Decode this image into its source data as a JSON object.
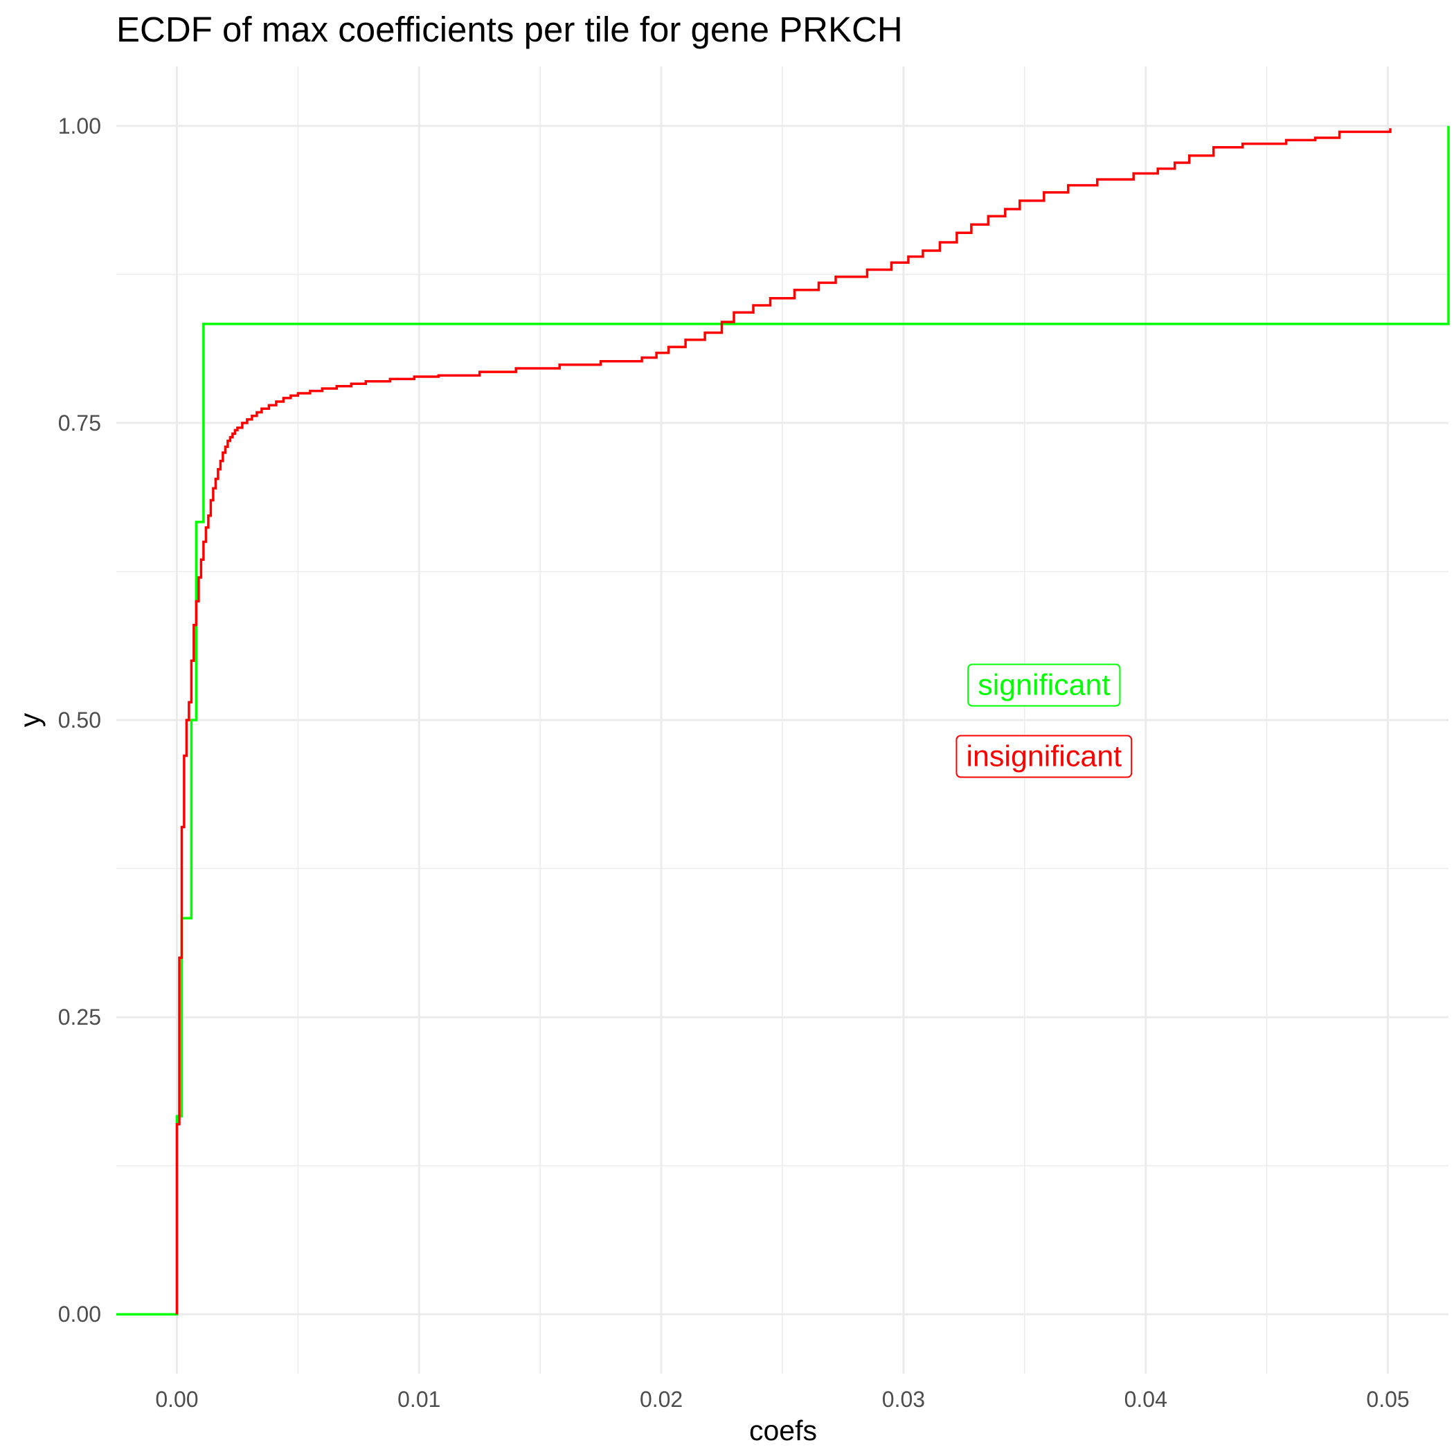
{
  "chart_data": {
    "type": "line",
    "step": true,
    "title": "ECDF of max coefficients per tile for gene PRKCH",
    "xlabel": "coefs",
    "ylabel": "y",
    "xlim": [
      -0.0025,
      0.0525
    ],
    "ylim": [
      -0.05,
      1.05
    ],
    "x_ticks": [
      0.0,
      0.01,
      0.02,
      0.03,
      0.04,
      0.05
    ],
    "x_tick_labels": [
      "0.00",
      "0.01",
      "0.02",
      "0.03",
      "0.04",
      "0.05"
    ],
    "y_ticks": [
      0.0,
      0.25,
      0.5,
      0.75,
      1.0
    ],
    "y_tick_labels": [
      "0.00",
      "0.25",
      "0.50",
      "0.75",
      "1.00"
    ],
    "x_minor_ticks": [
      0.005,
      0.015,
      0.025,
      0.035,
      0.045
    ],
    "y_minor_ticks": [
      0.125,
      0.375,
      0.625,
      0.875
    ],
    "grid": true,
    "series": [
      {
        "name": "significant",
        "color": "#00ff00",
        "x": [
          -0.0025,
          0.0,
          0.0002,
          0.0006,
          0.0008,
          0.0011,
          0.0525
        ],
        "y": [
          0.0,
          0.1667,
          0.3333,
          0.5,
          0.6667,
          0.8333,
          1.0
        ]
      },
      {
        "name": "insignificant",
        "color": "#ff0000",
        "x": [
          0.0,
          0.0001,
          0.0002,
          0.0003,
          0.0004,
          0.0005,
          0.0006,
          0.0007,
          0.0008,
          0.0009,
          0.001,
          0.0011,
          0.0012,
          0.0013,
          0.0014,
          0.0015,
          0.0016,
          0.0017,
          0.0018,
          0.0019,
          0.002,
          0.0021,
          0.0022,
          0.0023,
          0.0024,
          0.0025,
          0.0027,
          0.0029,
          0.0031,
          0.0033,
          0.0035,
          0.0038,
          0.0041,
          0.0044,
          0.0047,
          0.005,
          0.0055,
          0.006,
          0.0066,
          0.0072,
          0.0078,
          0.0088,
          0.0098,
          0.0108,
          0.0125,
          0.014,
          0.0158,
          0.0175,
          0.0192,
          0.0198,
          0.0203,
          0.021,
          0.0218,
          0.0225,
          0.023,
          0.0238,
          0.0245,
          0.0255,
          0.0265,
          0.0272,
          0.0285,
          0.0295,
          0.0302,
          0.0308,
          0.0315,
          0.0322,
          0.0328,
          0.0335,
          0.0342,
          0.0348,
          0.0358,
          0.0368,
          0.038,
          0.0395,
          0.0405,
          0.0412,
          0.0418,
          0.0428,
          0.044,
          0.0458,
          0.047,
          0.048,
          0.0501
        ],
        "y": [
          0.16,
          0.3,
          0.41,
          0.47,
          0.5,
          0.515,
          0.55,
          0.58,
          0.6,
          0.62,
          0.635,
          0.65,
          0.662,
          0.672,
          0.685,
          0.695,
          0.703,
          0.711,
          0.718,
          0.725,
          0.73,
          0.735,
          0.738,
          0.741,
          0.744,
          0.746,
          0.75,
          0.753,
          0.756,
          0.759,
          0.762,
          0.765,
          0.768,
          0.771,
          0.773,
          0.775,
          0.777,
          0.779,
          0.781,
          0.783,
          0.785,
          0.787,
          0.789,
          0.79,
          0.793,
          0.796,
          0.799,
          0.802,
          0.805,
          0.809,
          0.814,
          0.82,
          0.826,
          0.835,
          0.843,
          0.849,
          0.855,
          0.862,
          0.868,
          0.873,
          0.879,
          0.885,
          0.89,
          0.895,
          0.902,
          0.91,
          0.917,
          0.924,
          0.93,
          0.937,
          0.944,
          0.95,
          0.955,
          0.96,
          0.964,
          0.969,
          0.975,
          0.982,
          0.985,
          0.988,
          0.99,
          0.995,
          0.998
        ]
      }
    ],
    "annotations": [
      {
        "text": "significant",
        "x": 0.0358,
        "y": 0.53,
        "color": "#00ff00"
      },
      {
        "text": "insignificant",
        "x": 0.0358,
        "y": 0.47,
        "color": "#ff0000"
      }
    ]
  }
}
